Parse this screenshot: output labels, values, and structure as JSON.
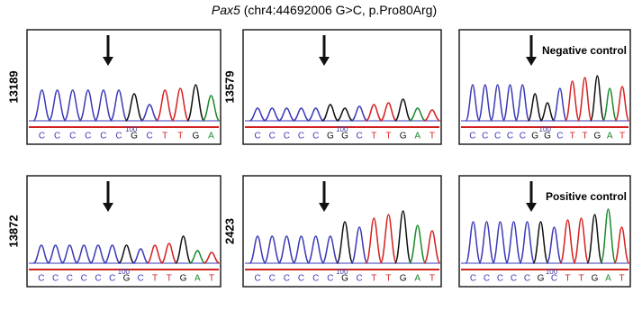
{
  "title": {
    "gene": "Pax5",
    "detail": " (chr4:44692006 G>C, p.Pro80Arg)"
  },
  "panels": [
    {
      "sample": "13189",
      "position": "100",
      "bases": [
        "C",
        "C",
        "C",
        "C",
        "C",
        "C",
        "G",
        "C",
        "T",
        "T",
        "G",
        "A"
      ]
    },
    {
      "sample": "13579",
      "position": "100",
      "bases": [
        "C",
        "C",
        "C",
        "C",
        "C",
        "G",
        "G",
        "C",
        "T",
        "T",
        "G",
        "A",
        "T"
      ]
    },
    {
      "control": "Negative control",
      "position": "100",
      "bases": [
        "C",
        "C",
        "C",
        "C",
        "C",
        "G",
        "G",
        "C",
        "T",
        "T",
        "G",
        "A",
        "T"
      ]
    },
    {
      "sample": "13872",
      "position": "100",
      "bases": [
        "C",
        "C",
        "C",
        "C",
        "C",
        "C",
        "G",
        "C",
        "T",
        "T",
        "G",
        "A",
        "T"
      ]
    },
    {
      "sample": "2423",
      "position": "100",
      "bases": [
        "C",
        "C",
        "C",
        "C",
        "C",
        "C",
        "G",
        "C",
        "T",
        "T",
        "G",
        "A",
        "T"
      ]
    },
    {
      "control": "Positive control",
      "position": "100",
      "bases": [
        "C",
        "C",
        "C",
        "C",
        "C",
        "G",
        "C",
        "T",
        "T",
        "G",
        "A",
        "T"
      ]
    }
  ]
}
